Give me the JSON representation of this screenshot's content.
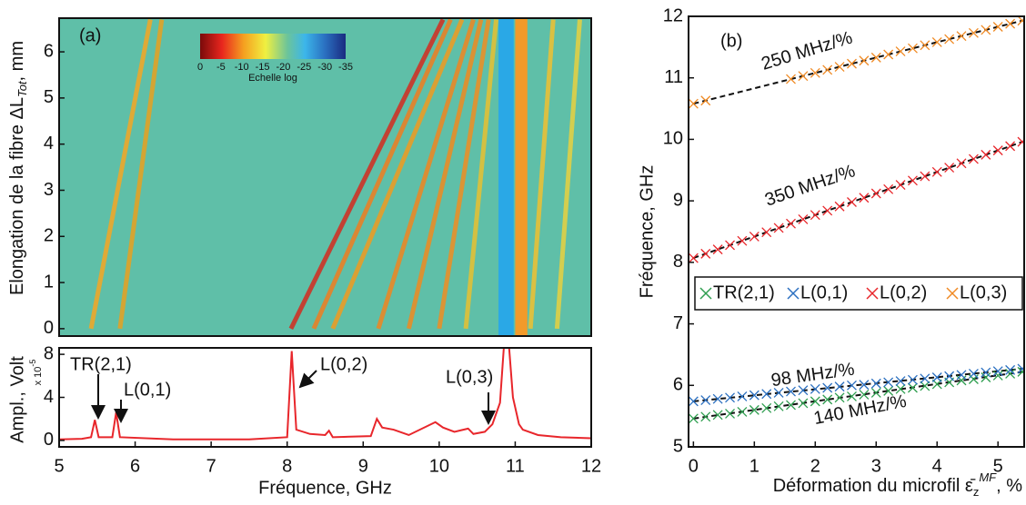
{
  "chart_data": [
    {
      "type": "heatmap",
      "panel_label": "(a)",
      "y_label": "Elongation de la fibre ΔL",
      "y_label_sub": "Tot",
      "y_label_end": ", mm",
      "xlim": [
        5,
        12
      ],
      "ylim": [
        -0.16,
        6.73
      ],
      "yticks": [
        0,
        1,
        2,
        3,
        4,
        5,
        6
      ],
      "background": "#5fbfa8",
      "colorbar_ticks": [
        0,
        -5,
        -10,
        -15,
        -20,
        -25,
        -30,
        -35
      ],
      "clim": [
        0,
        -35
      ],
      "colorbar_label": "Echelle log",
      "bands": [
        {
          "color": "#2aa8e6",
          "x": [
            10.78,
            10.98
          ]
        },
        {
          "color": "#f29a2a",
          "x": [
            11.0,
            11.16
          ]
        }
      ],
      "series": [
        {
          "color": "#f5a623",
          "x": [
            5.42,
            6.2
          ],
          "values": [
            0,
            6.7
          ]
        },
        {
          "color": "#e8a020",
          "x": [
            5.8,
            6.35
          ],
          "values": [
            0,
            6.7
          ]
        },
        {
          "color": "#d42a1e",
          "x": [
            8.05,
            10.05
          ],
          "values": [
            0,
            6.7
          ]
        },
        {
          "color": "#f07d20",
          "x": [
            8.35,
            10.15
          ],
          "values": [
            0,
            6.7
          ]
        },
        {
          "color": "#f09a20",
          "x": [
            8.6,
            10.3
          ],
          "values": [
            0,
            6.7
          ]
        },
        {
          "color": "#f08520",
          "x": [
            9.2,
            10.45
          ],
          "values": [
            0,
            6.7
          ]
        },
        {
          "color": "#ee8a20",
          "x": [
            9.6,
            10.55
          ],
          "values": [
            0,
            6.7
          ]
        },
        {
          "color": "#ef8d22",
          "x": [
            10.0,
            10.65
          ],
          "values": [
            0,
            6.7
          ]
        },
        {
          "color": "#e8c030",
          "x": [
            10.35,
            10.75
          ],
          "values": [
            0,
            6.7
          ]
        },
        {
          "color": "#f0c030",
          "x": [
            11.2,
            11.5
          ],
          "values": [
            0,
            6.7
          ]
        },
        {
          "color": "#e8d040",
          "x": [
            11.55,
            11.85
          ],
          "values": [
            0,
            6.7
          ]
        }
      ]
    },
    {
      "type": "line",
      "x_label": "Fréquence, GHz",
      "y_label": "Ampl., Volt",
      "y_scale": "x 10",
      "y_scale_exp": "-5",
      "xlim": [
        5,
        12
      ],
      "ylim": [
        -0.6,
        8.6
      ],
      "xticks": [
        5,
        6,
        7,
        8,
        9,
        10,
        11,
        12
      ],
      "yticks": [
        0,
        4,
        8
      ],
      "color": "#e8262b",
      "x": [
        5.0,
        5.3,
        5.42,
        5.47,
        5.52,
        5.7,
        5.75,
        5.8,
        6.5,
        7.5,
        8.0,
        8.06,
        8.12,
        8.3,
        8.5,
        8.55,
        8.6,
        9.1,
        9.18,
        9.25,
        9.4,
        9.6,
        9.95,
        10.05,
        10.2,
        10.38,
        10.45,
        10.6,
        10.7,
        10.8,
        10.85,
        10.92,
        10.97,
        11.05,
        11.1,
        11.3,
        11.6,
        12.0
      ],
      "values": [
        0.1,
        0.15,
        0.3,
        1.9,
        0.3,
        0.3,
        2.6,
        0.3,
        0.1,
        0.1,
        0.3,
        8.3,
        1.0,
        0.6,
        0.5,
        0.9,
        0.3,
        0.4,
        2.0,
        1.2,
        1.0,
        0.5,
        1.7,
        1.2,
        0.8,
        1.1,
        0.6,
        0.8,
        1.5,
        3.5,
        8.6,
        8.6,
        4.0,
        1.5,
        1.0,
        0.5,
        0.3,
        0.2
      ],
      "annotations": [
        "TR(2,1)",
        "L(0,1)",
        "L(0,2)",
        "L(0,3)"
      ]
    },
    {
      "type": "scatter",
      "panel_label": "(b)",
      "y_label": "Fréquence, GHz",
      "x_label": "Déformation du microfil ε̄",
      "x_label_sub": "z",
      "x_label_sup": "MF",
      "x_label_end": ", %",
      "xlim": [
        -0.08,
        5.43
      ],
      "ylim": [
        5,
        12
      ],
      "xticks": [
        0,
        1,
        2,
        3,
        4,
        5
      ],
      "yticks": [
        5,
        6,
        7,
        8,
        9,
        10,
        11,
        12
      ],
      "legend": "right",
      "x": [
        0,
        0.2,
        0.4,
        0.6,
        0.8,
        1.0,
        1.2,
        1.4,
        1.6,
        1.8,
        2.0,
        2.2,
        2.4,
        2.6,
        2.8,
        3.0,
        3.2,
        3.4,
        3.6,
        3.8,
        4.0,
        4.2,
        4.4,
        4.6,
        4.8,
        5.0,
        5.2,
        5.4
      ],
      "series": [
        {
          "name": "TR(2,1)",
          "color": "#2e9e4f",
          "values": [
            5.46,
            5.49,
            5.52,
            5.54,
            5.57,
            5.6,
            5.63,
            5.66,
            5.68,
            5.71,
            5.74,
            5.77,
            5.8,
            5.82,
            5.85,
            5.88,
            5.91,
            5.94,
            5.96,
            5.99,
            6.02,
            6.05,
            6.08,
            6.1,
            6.13,
            6.16,
            6.19,
            6.22
          ]
        },
        {
          "name": "L(0,1)",
          "color": "#2a6fc0",
          "values": [
            5.74,
            5.76,
            5.78,
            5.8,
            5.82,
            5.84,
            5.86,
            5.88,
            5.9,
            5.92,
            5.94,
            5.96,
            5.98,
            6.0,
            6.01,
            6.03,
            6.05,
            6.07,
            6.09,
            6.11,
            6.13,
            6.15,
            6.17,
            6.19,
            6.21,
            6.23,
            6.25,
            6.27
          ]
        },
        {
          "name": "L(0,2)",
          "color": "#e8262b",
          "values": [
            8.07,
            8.14,
            8.21,
            8.28,
            8.35,
            8.42,
            8.49,
            8.56,
            8.63,
            8.7,
            8.77,
            8.84,
            8.91,
            8.98,
            9.05,
            9.12,
            9.19,
            9.26,
            9.33,
            9.4,
            9.47,
            9.54,
            9.61,
            9.68,
            9.75,
            9.82,
            9.89,
            9.96
          ]
        },
        {
          "name": "L(0,3)",
          "color": "#f08a24",
          "values": [
            10.58,
            10.63,
            null,
            null,
            null,
            null,
            null,
            null,
            10.98,
            11.03,
            11.08,
            11.13,
            11.18,
            11.23,
            11.28,
            11.33,
            11.38,
            11.43,
            11.48,
            11.53,
            11.58,
            11.63,
            11.68,
            11.73,
            11.78,
            11.83,
            11.88,
            11.93
          ]
        }
      ],
      "fit_x": [
        0,
        5.4
      ],
      "fit_lines": [
        {
          "values": [
            5.46,
            6.22
          ]
        },
        {
          "values": [
            5.74,
            6.27
          ]
        },
        {
          "values": [
            8.07,
            9.96
          ]
        },
        {
          "values": [
            10.58,
            11.93
          ]
        }
      ],
      "annotations": [
        "250 MHz/%",
        "350 MHz/%",
        "98 MHz/%",
        "140 MHz/%"
      ]
    }
  ]
}
